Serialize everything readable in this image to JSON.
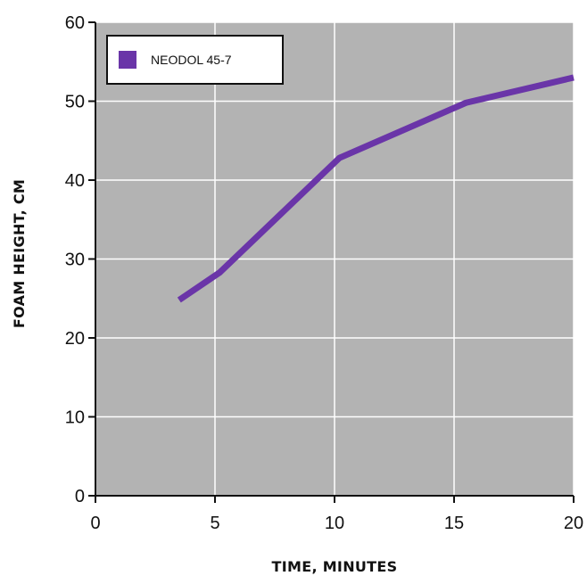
{
  "colors": {
    "plot_bg": "#b3b3b3",
    "grid": "#ffffff",
    "axis": "#111111",
    "series": "#6a35a8",
    "legend_bg": "#ffffff",
    "legend_border": "#111111"
  },
  "chart_data": {
    "type": "line",
    "title": "",
    "xlabel": "TIME, MINUTES",
    "ylabel": "FOAM HEIGHT, CM",
    "xlim": [
      0,
      20
    ],
    "ylim": [
      0,
      60
    ],
    "x_ticks": [
      0,
      5,
      10,
      15,
      20
    ],
    "y_ticks": [
      0,
      10,
      20,
      30,
      40,
      50,
      60
    ],
    "x_tick_labels": [
      "0",
      "5",
      "10",
      "15",
      "20"
    ],
    "y_tick_labels": [
      "0",
      "10",
      "20",
      "30",
      "40",
      "50",
      "60"
    ],
    "grid": true,
    "legend_position": "top-left",
    "series": [
      {
        "name": "NEODOL 45-7",
        "x": [
          3.5,
          5.2,
          10.2,
          15.5,
          20
        ],
        "y": [
          24.8,
          28.3,
          42.8,
          49.8,
          53
        ]
      }
    ]
  }
}
